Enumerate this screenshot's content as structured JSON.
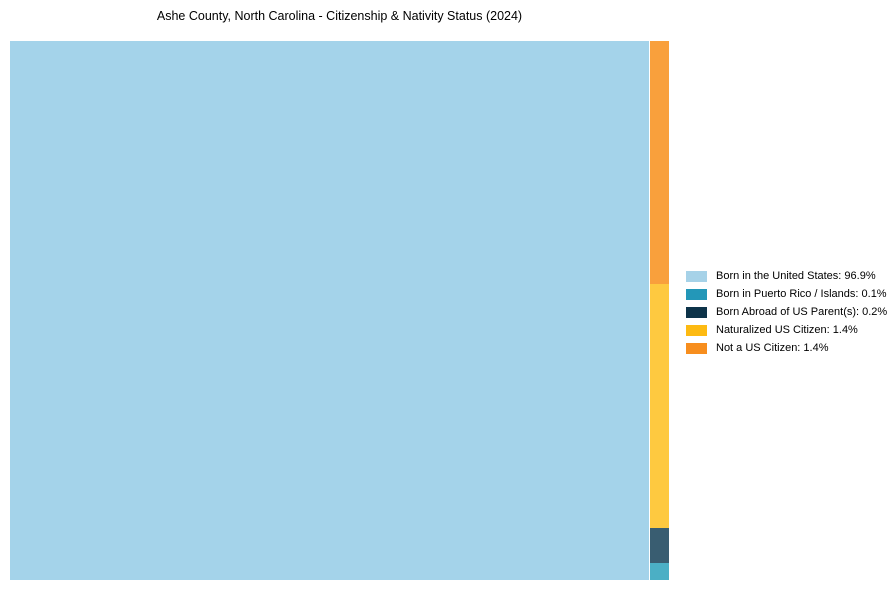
{
  "page": {
    "background_color": "#ffffff",
    "text_color": "#000000"
  },
  "chart_data": {
    "type": "treemap",
    "title": "Ashe County, North Carolina - Citizenship & Nativity Status (2024)",
    "unit": "%",
    "legend_position": "right",
    "categories": [
      "Born in the United States",
      "Born in Puerto Rico / Islands",
      "Born Abroad of US Parent(s)",
      "Naturalized US Citizen",
      "Not a US Citizen"
    ],
    "values": [
      96.9,
      0.1,
      0.2,
      1.4,
      1.4
    ],
    "items": [
      {
        "label": "Born in the United States",
        "value_pct": 96.9,
        "legend_label": "Born in the United States: 96.9%",
        "legend_color": "#A6D2E8",
        "block_color": "#A4D3EA"
      },
      {
        "label": "Born in Puerto Rico / Islands",
        "value_pct": 0.1,
        "legend_label": "Born in Puerto Rico / Islands: 0.1%",
        "legend_color": "#2397B8",
        "block_color": "#4BAFC5"
      },
      {
        "label": "Born Abroad of US Parent(s)",
        "value_pct": 0.2,
        "legend_label": "Born Abroad of US Parent(s): 0.2%",
        "legend_color": "#0D3349",
        "block_color": "#395D71"
      },
      {
        "label": "Naturalized US Citizen",
        "value_pct": 1.4,
        "legend_label": "Naturalized US Citizen: 1.4%",
        "legend_color": "#FDBA12",
        "block_color": "#FEC940"
      },
      {
        "label": "Not a US Citizen",
        "value_pct": 1.4,
        "legend_label": "Not a US Citizen: 1.4%",
        "legend_color": "#F78E1E",
        "block_color": "#F9A03C"
      }
    ],
    "layout_hints": {
      "main_block": "Born in the United States",
      "column_order_top_to_bottom": [
        "Not a US Citizen",
        "Naturalized US Citizen",
        "Born Abroad of US Parent(s)",
        "Born in Puerto Rico / Islands"
      ]
    }
  }
}
